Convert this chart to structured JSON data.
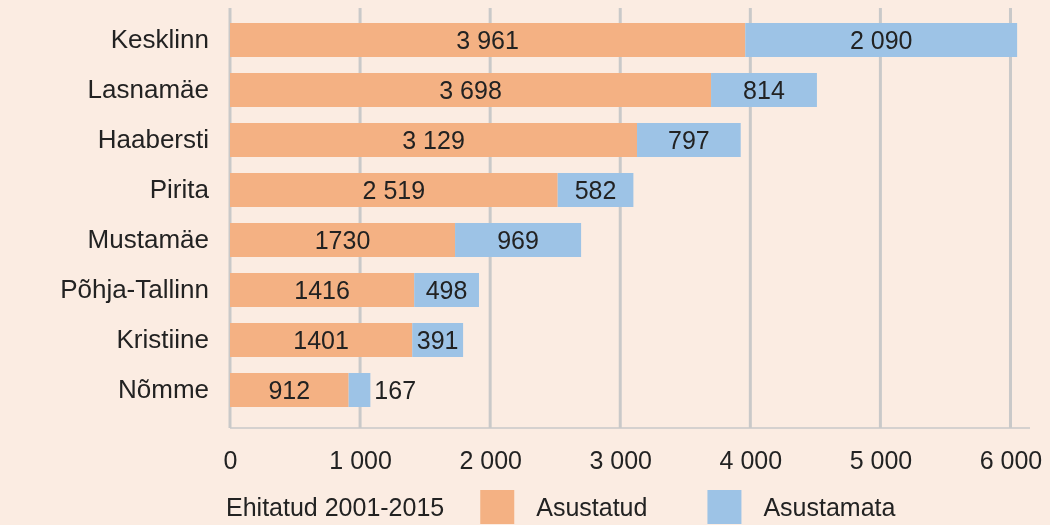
{
  "chart_data": {
    "type": "bar",
    "orientation": "horizontal",
    "stacked": true,
    "categories": [
      "Kesklinn",
      "Lasnamäe",
      "Haabersti",
      "Pirita",
      "Mustamäe",
      "Põhja-Tallinn",
      "Kristiine",
      "Nõmme"
    ],
    "series": [
      {
        "name": "Asustatud",
        "color": "#f4b183",
        "values": [
          3961,
          3698,
          3129,
          2519,
          1730,
          1416,
          1401,
          912
        ],
        "value_labels": [
          "3 961",
          "3 698",
          "3 129",
          "2 519",
          "1730",
          "1416",
          "1401",
          "912"
        ]
      },
      {
        "name": "Asustamata",
        "color": "#9dc3e6",
        "values": [
          2090,
          814,
          797,
          582,
          969,
          498,
          391,
          167
        ],
        "value_labels": [
          "2 090",
          "814",
          "797",
          "582",
          "969",
          "498",
          "391",
          "167"
        ]
      }
    ],
    "xlim": [
      0,
      6150
    ],
    "xticks": [
      0,
      {
        "value": 1000,
        "label": "1 000"
      },
      {
        "value": 2000,
        "label": "2 000"
      },
      {
        "value": 3000,
        "label": "3 000"
      },
      {
        "value": 4000,
        "label": "4 000"
      },
      {
        "value": 5000,
        "label": "5 000"
      },
      {
        "value": 6000,
        "label": "6 000"
      }
    ],
    "grid": "x",
    "legend": "bottom",
    "legend_title": "Ehitatud 2001-2015"
  }
}
